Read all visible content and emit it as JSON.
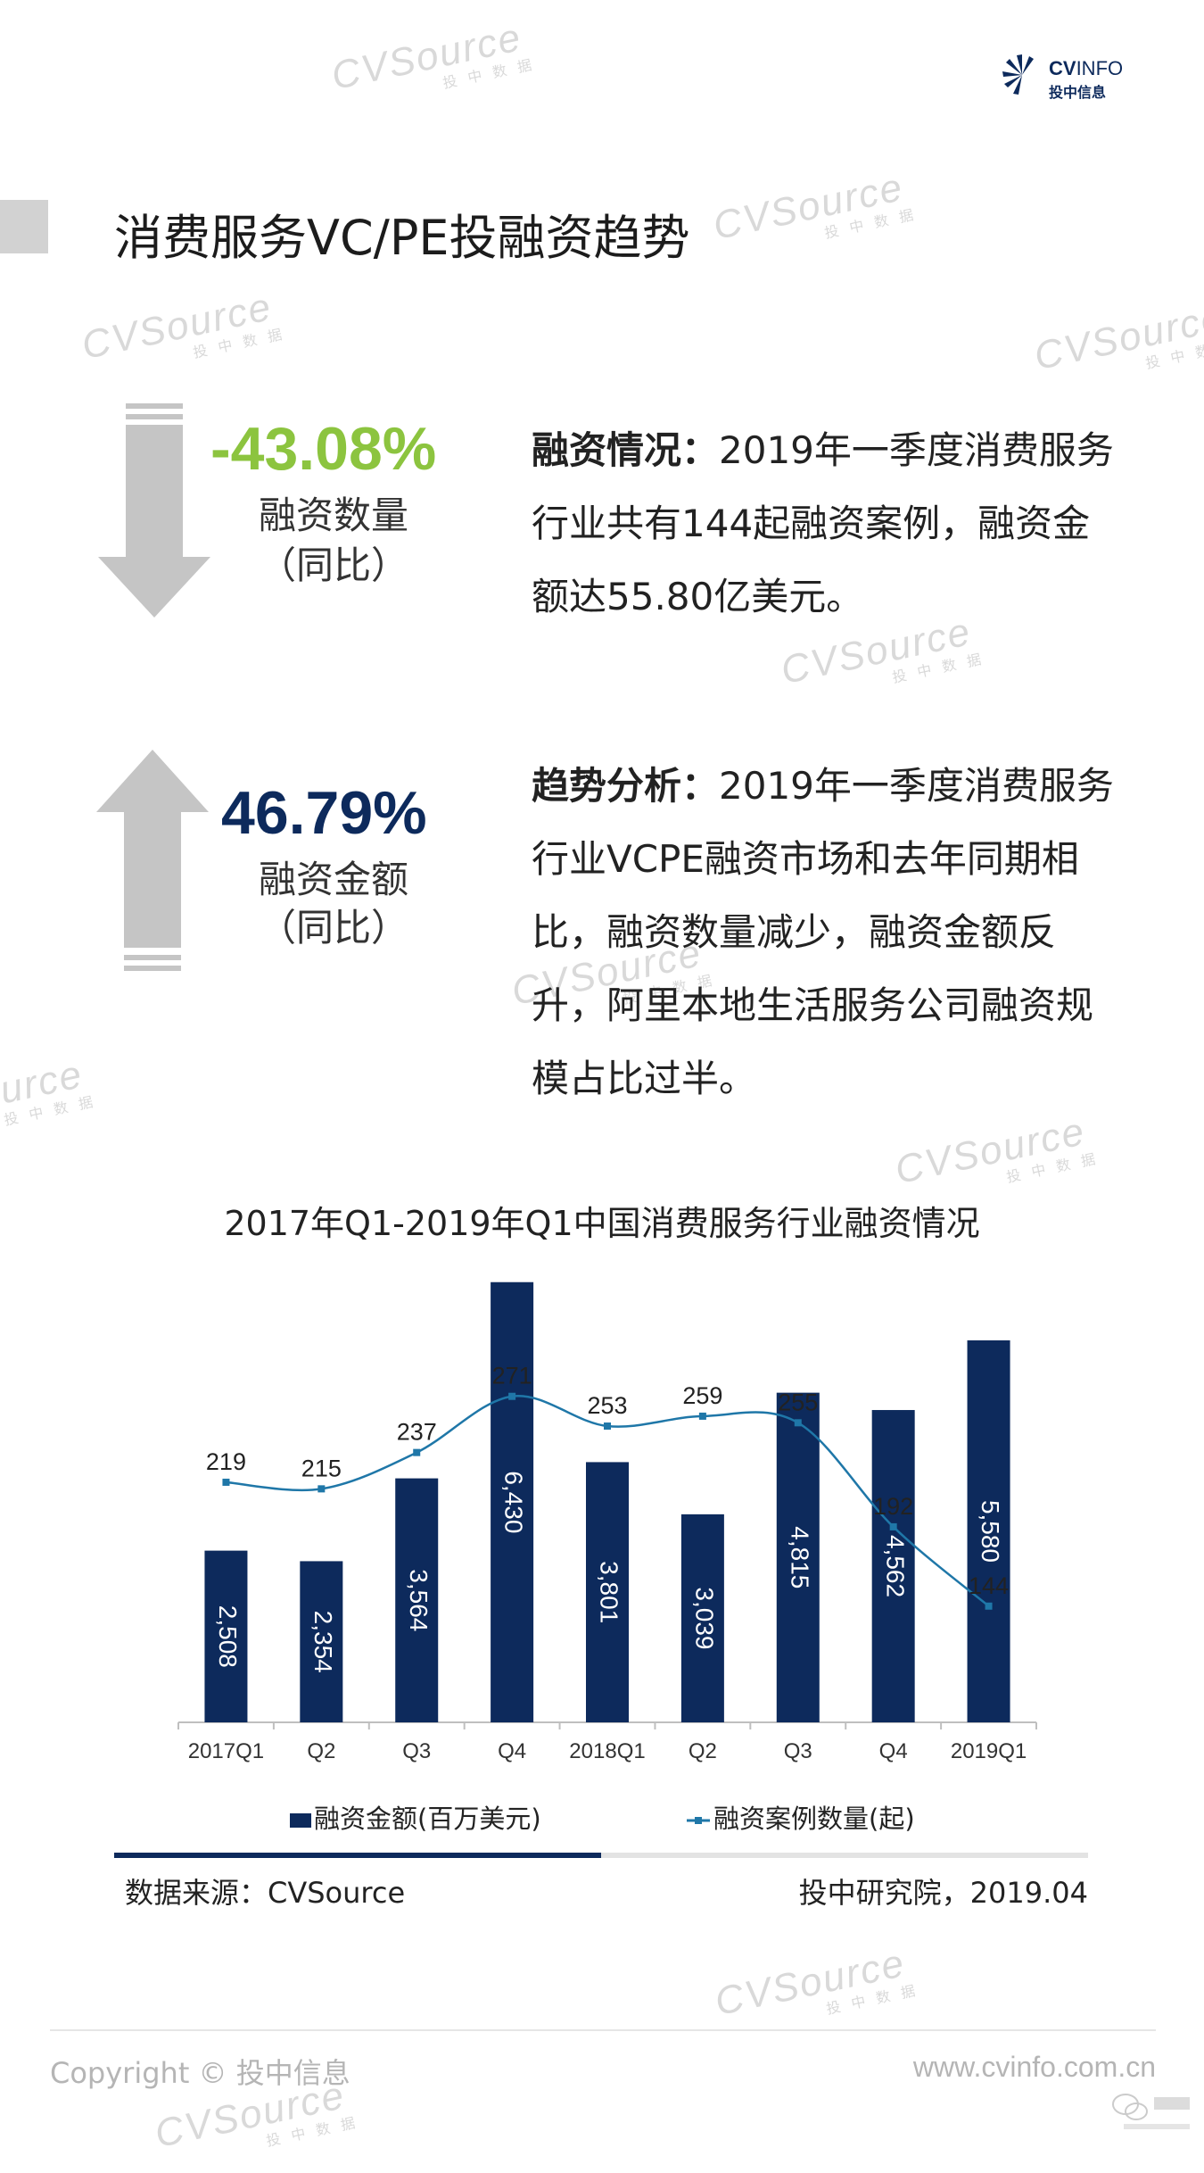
{
  "brand": {
    "logo_cv": "CV",
    "logo_info": "INFO",
    "logo_cn": "投中信息",
    "watermark_en": "CVSource",
    "watermark_cn": "投 中 数 据",
    "accent": "#0d2a5c"
  },
  "page": {
    "title": "消费服务VC/PE投融资趋势"
  },
  "stats": [
    {
      "percent": "-43.08%",
      "label_line1": "融资数量",
      "label_line2": "（同比）",
      "color": "#8cc43f",
      "arrow": "down-arrow-icon",
      "heading": "融资情况：",
      "text": "2019年一季度消费服务行业共有144起融资案例，融资金额达55.80亿美元。"
    },
    {
      "percent": "46.79%",
      "label_line1": "融资金额",
      "label_line2": "（同比）",
      "color": "#0d2a5c",
      "arrow": "up-arrow-icon",
      "heading": "趋势分析：",
      "text": "2019年一季度消费服务行业VCPE融资市场和去年同期相比，融资数量减少，融资金额反升，阿里本地生活服务公司融资规模占比过半。"
    }
  ],
  "chart_data": {
    "type": "bar",
    "title": "2017年Q1-2019年Q1中国消费服务行业融资情况",
    "categories": [
      "2017Q1",
      "Q2",
      "Q3",
      "Q4",
      "2018Q1",
      "Q2",
      "Q3",
      "Q4",
      "2019Q1"
    ],
    "series": [
      {
        "name": "融资金额(百万美元)",
        "type": "bar",
        "color": "#0d2a5c",
        "values": [
          2508,
          2354,
          3564,
          6430,
          3801,
          3039,
          4815,
          4562,
          5580
        ],
        "labels": [
          "2,508",
          "2,354",
          "3,564",
          "6,430",
          "3,801",
          "3,039",
          "4,815",
          "4,562",
          "5,580"
        ]
      },
      {
        "name": "融资案例数量(起)",
        "type": "line",
        "color": "#1f77a8",
        "values": [
          219,
          215,
          237,
          271,
          253,
          259,
          255,
          192,
          144
        ],
        "labels": [
          "219",
          "215",
          "237",
          "271",
          "253",
          "259",
          "255",
          "192",
          "144"
        ]
      }
    ],
    "legend_position": "bottom",
    "grid": false
  },
  "footer": {
    "source": "数据来源：CVSource",
    "credit": "投中研究院，2019.04",
    "copyright": "Copyright © 投中信息",
    "website": "www.cvinfo.com.cn"
  }
}
